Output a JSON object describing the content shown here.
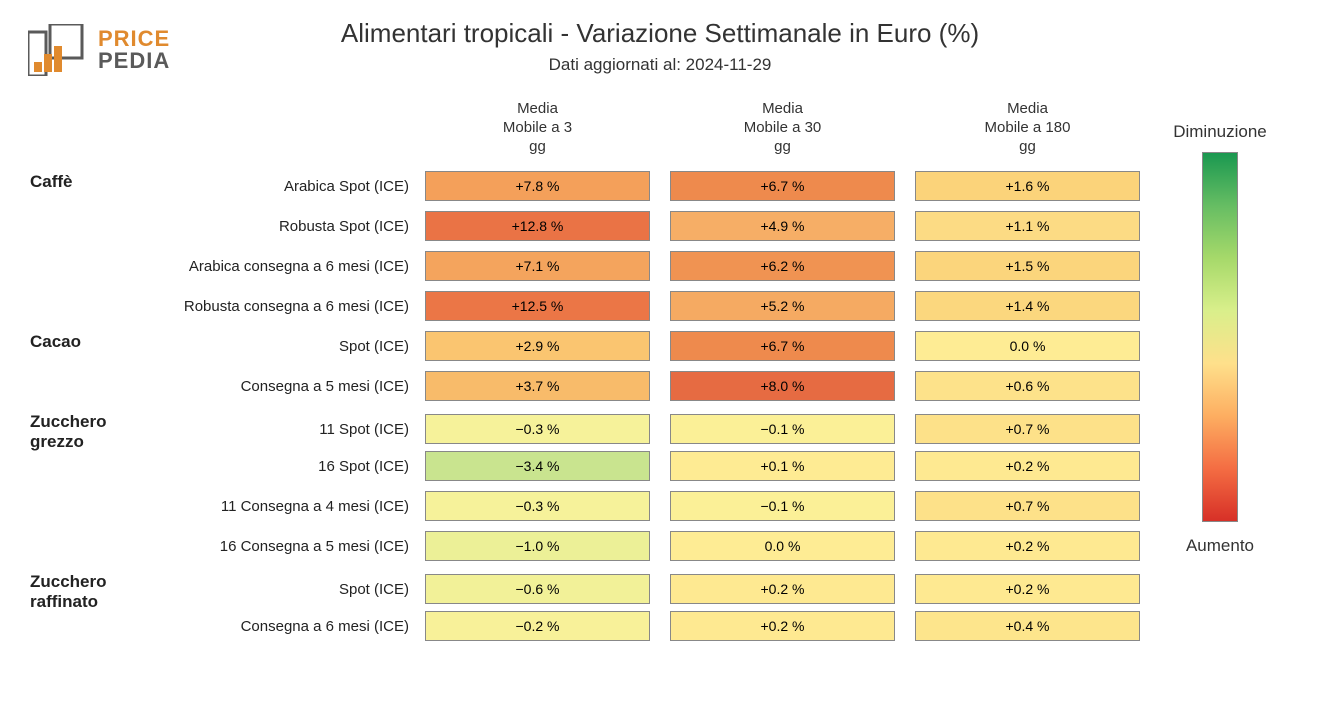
{
  "logo": {
    "top": "PRICE",
    "bottom": "PEDIA",
    "accent": "#e08a2e",
    "gray": "#5a5a5a"
  },
  "title": "Alimentari tropicali - Variazione Settimanale in Euro (%)",
  "subtitle": "Dati aggiornati al: 2024-11-29",
  "columns": [
    {
      "label": "Media\nMobile a 3\ngg"
    },
    {
      "label": "Media\nMobile a 30\ngg"
    },
    {
      "label": "Media\nMobile a 180\ngg"
    }
  ],
  "legend": {
    "top_label": "Diminuzione",
    "bottom_label": "Aumento",
    "gradient_stops": [
      "#1a9850",
      "#66bd63",
      "#a6d96a",
      "#d9ef8b",
      "#fee08b",
      "#fdae61",
      "#f46d43",
      "#d73027"
    ]
  },
  "style": {
    "cell_border": "#888888",
    "font_family": "Segoe UI, Arial, sans-serif",
    "title_fontsize": 26,
    "subtitle_fontsize": 17,
    "header_fontsize": 15,
    "cell_fontsize": 14,
    "category_fontsize": 17,
    "background": "#ffffff",
    "chart_type": "heatmap-table"
  },
  "categories": [
    {
      "name": "Caffè",
      "rows": [
        {
          "label": "Arabica Spot (ICE)",
          "cells": [
            {
              "v": "+7.8 %",
              "c": "#f4a05a"
            },
            {
              "v": "+6.7 %",
              "c": "#ee8a4d"
            },
            {
              "v": "+1.6 %",
              "c": "#fbd37a"
            }
          ]
        },
        {
          "label": "Robusta Spot (ICE)",
          "cells": [
            {
              "v": "+12.8 %",
              "c": "#ea7345"
            },
            {
              "v": "+4.9 %",
              "c": "#f6ae66"
            },
            {
              "v": "+1.1 %",
              "c": "#fcdb84"
            }
          ]
        },
        {
          "label": "Arabica consegna a 6 mesi (ICE)",
          "cells": [
            {
              "v": "+7.1 %",
              "c": "#f4a45d"
            },
            {
              "v": "+6.2 %",
              "c": "#f09352"
            },
            {
              "v": "+1.5 %",
              "c": "#fbd57c"
            }
          ]
        },
        {
          "label": "Robusta consegna a 6 mesi (ICE)",
          "cells": [
            {
              "v": "+12.5 %",
              "c": "#eb7646"
            },
            {
              "v": "+5.2 %",
              "c": "#f5aa62"
            },
            {
              "v": "+1.4 %",
              "c": "#fbd77e"
            }
          ]
        }
      ]
    },
    {
      "name": "Cacao",
      "rows": [
        {
          "label": "Spot (ICE)",
          "cells": [
            {
              "v": "+2.9 %",
              "c": "#fac570"
            },
            {
              "v": "+6.7 %",
              "c": "#ee8a4d"
            },
            {
              "v": "0.0 %",
              "c": "#feec94"
            }
          ]
        },
        {
          "label": "Consegna a 5 mesi (ICE)",
          "cells": [
            {
              "v": "+3.7 %",
              "c": "#f8bb6a"
            },
            {
              "v": "+8.0 %",
              "c": "#e66b42"
            },
            {
              "v": "+0.6 %",
              "c": "#fde28a"
            }
          ]
        }
      ]
    },
    {
      "name": "Zucchero grezzo",
      "rows": [
        {
          "label": "11 Spot (ICE)",
          "cells": [
            {
              "v": "−0.3 %",
              "c": "#f6f29a"
            },
            {
              "v": "−0.1 %",
              "c": "#fbf097"
            },
            {
              "v": "+0.7 %",
              "c": "#fde189"
            }
          ]
        },
        {
          "label": "16 Spot (ICE)",
          "cells": [
            {
              "v": "−3.4 %",
              "c": "#c9e48f"
            },
            {
              "v": "+0.1 %",
              "c": "#feeb93"
            },
            {
              "v": "+0.2 %",
              "c": "#fee991"
            }
          ]
        },
        {
          "label": "11 Consegna a 4 mesi (ICE)",
          "cells": [
            {
              "v": "−0.3 %",
              "c": "#f6f29a"
            },
            {
              "v": "−0.1 %",
              "c": "#fbf097"
            },
            {
              "v": "+0.7 %",
              "c": "#fde189"
            }
          ]
        },
        {
          "label": "16 Consegna a 5 mesi (ICE)",
          "cells": [
            {
              "v": "−1.0 %",
              "c": "#ecf097"
            },
            {
              "v": "0.0 %",
              "c": "#feec94"
            },
            {
              "v": "+0.2 %",
              "c": "#fee991"
            }
          ]
        }
      ]
    },
    {
      "name": "Zucchero raffinato",
      "rows": [
        {
          "label": "Spot (ICE)",
          "cells": [
            {
              "v": "−0.6 %",
              "c": "#f2f198"
            },
            {
              "v": "+0.2 %",
              "c": "#fee991"
            },
            {
              "v": "+0.2 %",
              "c": "#fee991"
            }
          ]
        },
        {
          "label": "Consegna a 6 mesi (ICE)",
          "cells": [
            {
              "v": "−0.2 %",
              "c": "#f8f199"
            },
            {
              "v": "+0.2 %",
              "c": "#fee991"
            },
            {
              "v": "+0.4 %",
              "c": "#fde58c"
            }
          ]
        }
      ]
    }
  ]
}
